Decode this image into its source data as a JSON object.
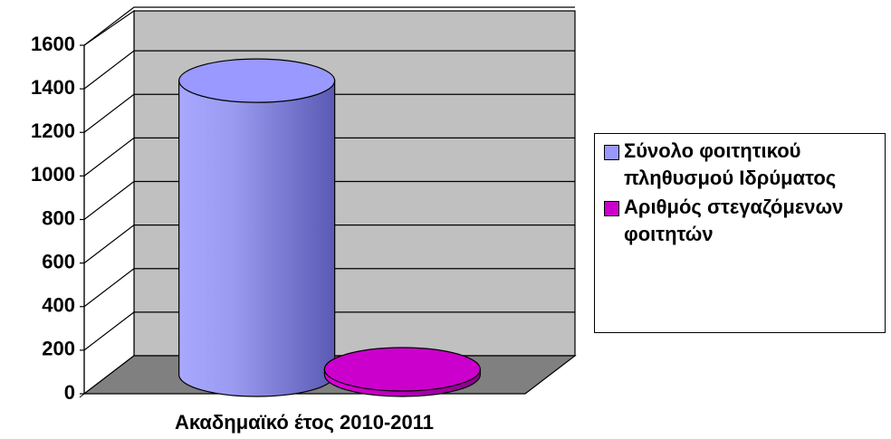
{
  "chart_data": {
    "type": "bar3d",
    "categories": [
      "Ακαδημαϊκό έτος 2010-2011"
    ],
    "series": [
      {
        "name": "Σύνολο φοιτητικού πληθυσμού Ιδρύματος",
        "color": "#9999ff",
        "values": [
          1350
        ]
      },
      {
        "name": "Αριθμός στεγαζόμενων φοιτητών",
        "color": "#cc00cc",
        "values": [
          25
        ]
      }
    ],
    "ylim": [
      0,
      1600
    ],
    "yticks": [
      0,
      200,
      400,
      600,
      800,
      1000,
      1200,
      1400,
      1600
    ],
    "grid": true,
    "legend": "right"
  }
}
